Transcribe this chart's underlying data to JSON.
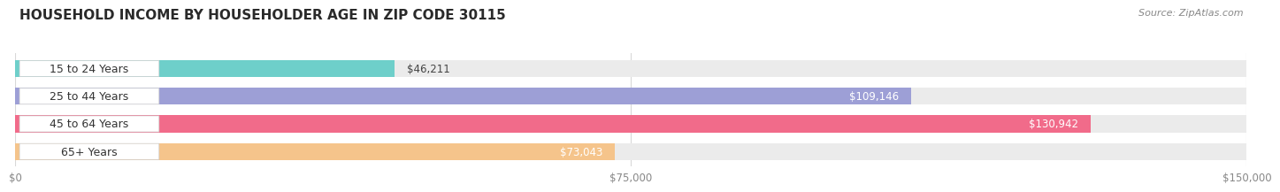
{
  "title": "HOUSEHOLD INCOME BY HOUSEHOLDER AGE IN ZIP CODE 30115",
  "source": "Source: ZipAtlas.com",
  "categories": [
    "15 to 24 Years",
    "25 to 44 Years",
    "45 to 64 Years",
    "65+ Years"
  ],
  "values": [
    46211,
    109146,
    130942,
    73043
  ],
  "bar_colors": [
    "#6ecfca",
    "#9d9fd6",
    "#f16b8a",
    "#f5c48b"
  ],
  "bar_bg_color": "#ebebeb",
  "value_labels": [
    "$46,211",
    "$109,146",
    "$130,942",
    "$73,043"
  ],
  "xlim": [
    0,
    150000
  ],
  "xticks": [
    0,
    75000,
    150000
  ],
  "xticklabels": [
    "$0",
    "$75,000",
    "$150,000"
  ],
  "title_fontsize": 11,
  "source_fontsize": 8,
  "label_fontsize": 9,
  "value_fontsize": 8.5,
  "bar_height": 0.62,
  "bg_color": "#ffffff",
  "pill_bg_color": "#ffffff",
  "pill_text_color": "#333333",
  "grid_color": "#d8d8d8",
  "tick_color": "#888888"
}
